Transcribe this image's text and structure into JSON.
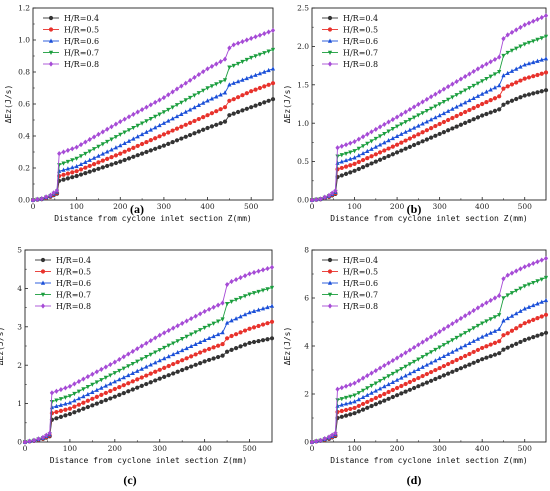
{
  "figure": {
    "panels": [
      {
        "label": "(a)",
        "ylabel": "ΔEz(J/s)",
        "xlabel": "Distance from cyclone inlet section Z(mm)"
      },
      {
        "label": "(b)",
        "ylabel": "ΔEz(J/s)",
        "xlabel": "Distance from cyclone inlet section Z(mm)"
      },
      {
        "label": "(c)",
        "ylabel": "ΔEz(J/s)",
        "xlabel": "Distance from cyclone inlet section Z(mm)"
      },
      {
        "label": "(d)",
        "ylabel": "ΔEz(J/s)",
        "xlabel": "Distance from cyclone inlet section Z(mm)"
      }
    ]
  },
  "chart_data": [
    {
      "type": "line",
      "panel": "(a)",
      "xlabel": "Distance from cyclone inlet section Z(mm)",
      "ylabel": "ΔEz(J/s)",
      "xlim": [
        0,
        550
      ],
      "ylim": [
        0,
        1.2
      ],
      "xticks": [
        0,
        100,
        200,
        300,
        400,
        500
      ],
      "yticks": [
        0.0,
        0.2,
        0.4,
        0.6,
        0.8,
        1.0,
        1.2
      ],
      "ytick_labels": [
        "0.0",
        "0.2",
        "0.4",
        "0.6",
        "0.8",
        "1.0",
        "1.2"
      ],
      "legend_position": "top-left",
      "grid": false,
      "x": [
        0,
        20,
        40,
        55,
        60,
        100,
        200,
        300,
        400,
        440,
        450,
        460,
        500,
        550
      ],
      "series": [
        {
          "name": "H/R=0.4",
          "color": "#333333",
          "marker": "circle",
          "values": [
            0.0,
            0.005,
            0.02,
            0.04,
            0.12,
            0.15,
            0.24,
            0.34,
            0.45,
            0.49,
            0.53,
            0.54,
            0.58,
            0.63
          ]
        },
        {
          "name": "H/R=0.5",
          "color": "#e8322c",
          "marker": "circle",
          "values": [
            0.0,
            0.006,
            0.022,
            0.045,
            0.15,
            0.18,
            0.29,
            0.41,
            0.53,
            0.58,
            0.62,
            0.63,
            0.68,
            0.73
          ]
        },
        {
          "name": "H/R=0.6",
          "color": "#1a4fd8",
          "marker": "triangle-up",
          "values": [
            0.0,
            0.007,
            0.025,
            0.05,
            0.18,
            0.21,
            0.34,
            0.48,
            0.62,
            0.67,
            0.72,
            0.73,
            0.77,
            0.82
          ]
        },
        {
          "name": "H/R=0.7",
          "color": "#1b9e3e",
          "marker": "triangle-down",
          "values": [
            0.0,
            0.008,
            0.027,
            0.055,
            0.22,
            0.26,
            0.41,
            0.55,
            0.7,
            0.75,
            0.83,
            0.84,
            0.89,
            0.94
          ]
        },
        {
          "name": "H/R=0.8",
          "color": "#a64bd6",
          "marker": "diamond",
          "values": [
            0.0,
            0.009,
            0.03,
            0.06,
            0.29,
            0.33,
            0.49,
            0.64,
            0.82,
            0.88,
            0.95,
            0.97,
            1.01,
            1.06
          ]
        }
      ]
    },
    {
      "type": "line",
      "panel": "(b)",
      "xlabel": "Distance from cyclone inlet section Z(mm)",
      "ylabel": "ΔEz(J/s)",
      "xlim": [
        0,
        550
      ],
      "ylim": [
        0,
        2.5
      ],
      "xticks": [
        0,
        100,
        200,
        300,
        400,
        500
      ],
      "yticks": [
        0.0,
        0.5,
        1.0,
        1.5,
        2.0,
        2.5
      ],
      "ytick_labels": [
        "0.0",
        "0.5",
        "1.0",
        "1.5",
        "2.0",
        "2.5"
      ],
      "legend_position": "top-left",
      "grid": false,
      "x": [
        0,
        20,
        40,
        55,
        60,
        100,
        200,
        300,
        400,
        440,
        450,
        460,
        500,
        550
      ],
      "series": [
        {
          "name": "H/R=0.4",
          "color": "#333333",
          "marker": "circle",
          "values": [
            0.0,
            0.01,
            0.04,
            0.08,
            0.3,
            0.38,
            0.62,
            0.86,
            1.1,
            1.18,
            1.24,
            1.27,
            1.36,
            1.43
          ]
        },
        {
          "name": "H/R=0.5",
          "color": "#e8322c",
          "marker": "circle",
          "values": [
            0.0,
            0.011,
            0.045,
            0.09,
            0.4,
            0.47,
            0.72,
            0.99,
            1.25,
            1.35,
            1.45,
            1.48,
            1.58,
            1.66
          ]
        },
        {
          "name": "H/R=0.6",
          "color": "#1a4fd8",
          "marker": "triangle-up",
          "values": [
            0.0,
            0.012,
            0.05,
            0.1,
            0.48,
            0.55,
            0.83,
            1.1,
            1.38,
            1.49,
            1.62,
            1.65,
            1.76,
            1.84
          ]
        },
        {
          "name": "H/R=0.7",
          "color": "#1b9e3e",
          "marker": "triangle-down",
          "values": [
            0.0,
            0.013,
            0.055,
            0.11,
            0.57,
            0.64,
            0.96,
            1.25,
            1.55,
            1.67,
            1.88,
            1.92,
            2.03,
            2.13
          ]
        },
        {
          "name": "H/R=0.8",
          "color": "#a64bd6",
          "marker": "diamond",
          "values": [
            0.0,
            0.014,
            0.06,
            0.12,
            0.68,
            0.76,
            1.08,
            1.41,
            1.74,
            1.86,
            2.1,
            2.15,
            2.28,
            2.4
          ]
        }
      ]
    },
    {
      "type": "line",
      "panel": "(c)",
      "xlabel": "Distance from cyclone inlet section Z(mm)",
      "ylabel": "ΔEz(J/s)",
      "xlim": [
        0,
        550
      ],
      "ylim": [
        0,
        5
      ],
      "xticks": [
        0,
        100,
        200,
        300,
        400,
        500
      ],
      "yticks": [
        0,
        1,
        2,
        3,
        4,
        5
      ],
      "ytick_labels": [
        "0",
        "1",
        "2",
        "3",
        "4",
        "5"
      ],
      "legend_position": "top-left",
      "grid": false,
      "x": [
        0,
        20,
        40,
        55,
        60,
        100,
        200,
        300,
        400,
        440,
        450,
        460,
        500,
        550
      ],
      "series": [
        {
          "name": "H/R=0.4",
          "color": "#333333",
          "marker": "circle",
          "values": [
            0.0,
            0.03,
            0.08,
            0.15,
            0.58,
            0.73,
            1.18,
            1.65,
            2.1,
            2.25,
            2.35,
            2.4,
            2.58,
            2.7
          ]
        },
        {
          "name": "H/R=0.5",
          "color": "#e8322c",
          "marker": "circle",
          "values": [
            0.0,
            0.03,
            0.09,
            0.17,
            0.75,
            0.87,
            1.38,
            1.88,
            2.38,
            2.55,
            2.7,
            2.76,
            2.95,
            3.13
          ]
        },
        {
          "name": "H/R=0.6",
          "color": "#1a4fd8",
          "marker": "triangle-up",
          "values": [
            0.0,
            0.035,
            0.1,
            0.19,
            0.9,
            1.02,
            1.57,
            2.12,
            2.65,
            2.85,
            3.1,
            3.16,
            3.37,
            3.54
          ]
        },
        {
          "name": "H/R=0.7",
          "color": "#1b9e3e",
          "marker": "triangle-down",
          "values": [
            0.0,
            0.04,
            0.11,
            0.21,
            1.05,
            1.2,
            1.8,
            2.4,
            2.98,
            3.2,
            3.6,
            3.66,
            3.85,
            4.02
          ]
        },
        {
          "name": "H/R=0.8",
          "color": "#a64bd6",
          "marker": "diamond",
          "values": [
            0.0,
            0.045,
            0.12,
            0.23,
            1.28,
            1.45,
            2.08,
            2.78,
            3.4,
            3.62,
            4.1,
            4.18,
            4.38,
            4.55
          ]
        }
      ]
    },
    {
      "type": "line",
      "panel": "(d)",
      "xlabel": "Distance from cyclone inlet section Z(mm)",
      "ylabel": "ΔEz(J/s)",
      "xlim": [
        0,
        550
      ],
      "ylim": [
        0,
        8
      ],
      "xticks": [
        0,
        100,
        200,
        300,
        400,
        500
      ],
      "yticks": [
        0,
        2,
        4,
        6,
        8
      ],
      "ytick_labels": [
        "0",
        "2",
        "4",
        "6",
        "8"
      ],
      "legend_position": "top-left",
      "grid": false,
      "x": [
        0,
        20,
        40,
        55,
        60,
        100,
        200,
        300,
        400,
        440,
        450,
        460,
        500,
        550
      ],
      "series": [
        {
          "name": "H/R=0.4",
          "color": "#333333",
          "marker": "circle",
          "values": [
            0.0,
            0.05,
            0.13,
            0.25,
            1.0,
            1.2,
            1.95,
            2.7,
            3.45,
            3.7,
            3.85,
            3.93,
            4.25,
            4.55
          ]
        },
        {
          "name": "H/R=0.5",
          "color": "#e8322c",
          "marker": "circle",
          "values": [
            0.0,
            0.055,
            0.15,
            0.28,
            1.25,
            1.42,
            2.25,
            3.08,
            3.92,
            4.2,
            4.45,
            4.53,
            4.95,
            5.3
          ]
        },
        {
          "name": "H/R=0.6",
          "color": "#1a4fd8",
          "marker": "triangle-up",
          "values": [
            0.0,
            0.06,
            0.17,
            0.31,
            1.5,
            1.68,
            2.58,
            3.48,
            4.38,
            4.7,
            5.05,
            5.15,
            5.55,
            5.9
          ]
        },
        {
          "name": "H/R=0.7",
          "color": "#1b9e3e",
          "marker": "triangle-down",
          "values": [
            0.0,
            0.065,
            0.19,
            0.34,
            1.75,
            1.95,
            2.95,
            3.95,
            4.95,
            5.3,
            6.0,
            6.12,
            6.5,
            6.85
          ]
        },
        {
          "name": "H/R=0.8",
          "color": "#a64bd6",
          "marker": "diamond",
          "values": [
            0.0,
            0.07,
            0.21,
            0.37,
            2.2,
            2.45,
            3.5,
            4.6,
            5.7,
            6.1,
            6.8,
            6.95,
            7.3,
            7.65
          ]
        }
      ]
    }
  ]
}
